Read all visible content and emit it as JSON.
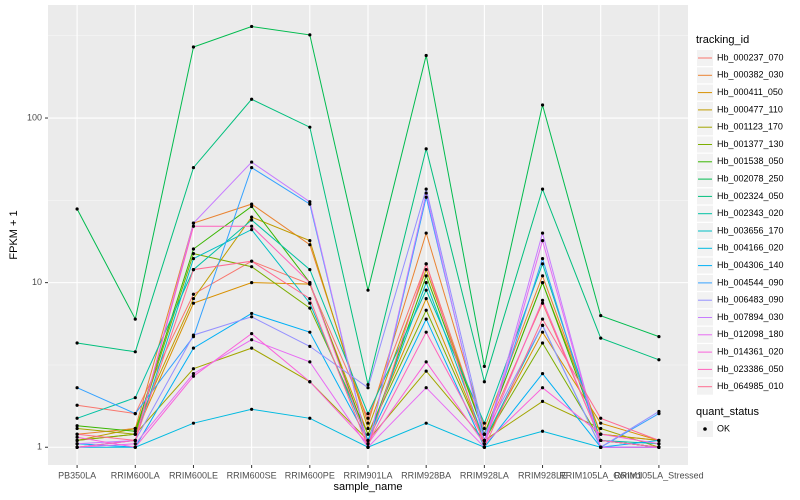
{
  "chart_data": {
    "type": "line",
    "log_y": true,
    "grid": true,
    "x_label": "sample_name",
    "y_label": "FPKM + 1",
    "legend_title": "tracking_id",
    "categories": [
      "PB350LA",
      "RRIM600LA",
      "RRIM600LE",
      "RRIM600SE",
      "RRIM600PE",
      "RRIM901LA",
      "RRIM928BA",
      "RRIM928LA",
      "RRIM928LE",
      "RRIM105LA_Control",
      "RRIM105LA_Stressed"
    ],
    "ylim": [
      0.78,
      486
    ],
    "yticks": [
      1,
      10,
      100
    ],
    "point_color": "#000000",
    "point_legend": {
      "title": "quant_status",
      "labels": [
        "OK"
      ]
    },
    "series": [
      {
        "name": "Hb_000237_070",
        "color": "#F8766D",
        "values": [
          1.8,
          1.6,
          8.5,
          13.5,
          9.8,
          1.5,
          13,
          1.2,
          7.5,
          1.1,
          1.0
        ]
      },
      {
        "name": "Hb_000382_030",
        "color": "#EA8331",
        "values": [
          1.2,
          1.3,
          23,
          30,
          17,
          1.4,
          20,
          1.3,
          11,
          1.2,
          1.1
        ]
      },
      {
        "name": "Hb_000411_050",
        "color": "#D89000",
        "values": [
          1.1,
          1.2,
          7.5,
          10,
          9.8,
          1.2,
          8,
          1.1,
          5,
          1.4,
          1.1
        ]
      },
      {
        "name": "Hb_000477_110",
        "color": "#C09B00",
        "values": [
          1.1,
          1.3,
          8,
          25,
          18,
          1.3,
          12,
          1.2,
          10,
          1.2,
          1.1
        ]
      },
      {
        "name": "Hb_001123_170",
        "color": "#A3A500",
        "values": [
          1.3,
          1.2,
          3,
          4,
          2.5,
          1.1,
          2.9,
          1.1,
          1.9,
          1.3,
          1.0
        ]
      },
      {
        "name": "Hb_001377_130",
        "color": "#7CAE00",
        "values": [
          1.1,
          1.2,
          15,
          12.5,
          7,
          1.2,
          6.8,
          1.1,
          4.3,
          1.1,
          1.0
        ]
      },
      {
        "name": "Hb_001538_050",
        "color": "#39B600",
        "values": [
          1.35,
          1.25,
          16,
          29,
          10,
          1.1,
          11,
          1.2,
          10,
          1.1,
          1.0
        ]
      },
      {
        "name": "Hb_002078_250",
        "color": "#00BB4E",
        "values": [
          28,
          6,
          270,
          360,
          320,
          9,
          240,
          3.1,
          120,
          6.3,
          4.7
        ]
      },
      {
        "name": "Hb_002324_050",
        "color": "#00BF7D",
        "values": [
          4.3,
          3.8,
          50,
          130,
          88,
          2.4,
          65,
          2.5,
          37,
          4.6,
          3.4
        ]
      },
      {
        "name": "Hb_002343_020",
        "color": "#00C1A3",
        "values": [
          1.5,
          2,
          12,
          24,
          12,
          1.6,
          9,
          1.4,
          13,
          1.1,
          1.05
        ]
      },
      {
        "name": "Hb_003656_170",
        "color": "#00BFC4",
        "values": [
          1.0,
          1.1,
          14,
          21,
          7.5,
          1.1,
          10,
          1.1,
          5.5,
          1.0,
          1.0
        ]
      },
      {
        "name": "Hb_004166_020",
        "color": "#00BAE0",
        "values": [
          1.0,
          1.0,
          1.4,
          1.7,
          1.5,
          1.0,
          1.4,
          1.0,
          1.25,
          1.0,
          1.0
        ]
      },
      {
        "name": "Hb_004306_140",
        "color": "#00B0F6",
        "values": [
          1.05,
          1.0,
          4,
          6.5,
          5,
          1.1,
          6,
          1.0,
          2.8,
          1.0,
          1.1
        ]
      },
      {
        "name": "Hb_004544_090",
        "color": "#35A2FF",
        "values": [
          2.3,
          1.6,
          4.7,
          50,
          30,
          1.0,
          33,
          1.1,
          14,
          1.0,
          1.6
        ]
      },
      {
        "name": "Hb_006483_090",
        "color": "#9590FF",
        "values": [
          1.0,
          1.1,
          4.8,
          6.2,
          4.1,
          2.3,
          37,
          1.2,
          5.5,
          1.0,
          1.65
        ]
      },
      {
        "name": "Hb_007894_030",
        "color": "#C77CFF",
        "values": [
          1.05,
          1.1,
          23,
          54,
          31,
          1.0,
          35,
          1.05,
          20,
          1.0,
          1.0
        ]
      },
      {
        "name": "Hb_012098_180",
        "color": "#E76BF3",
        "values": [
          1.0,
          1.05,
          2.8,
          4.5,
          3.3,
          1.0,
          2.3,
          1.0,
          18,
          1.0,
          1.0
        ]
      },
      {
        "name": "Hb_014361_020",
        "color": "#FA62DB",
        "values": [
          1.15,
          1.0,
          2.7,
          4.9,
          2.5,
          1.05,
          3.3,
          1.05,
          2.3,
          1.2,
          1.05
        ]
      },
      {
        "name": "Hb_023386_050",
        "color": "#FF62BC",
        "values": [
          1.0,
          1.1,
          22,
          22,
          10,
          1.05,
          5,
          1.1,
          7.8,
          1.1,
          1.0
        ]
      },
      {
        "name": "Hb_064985_010",
        "color": "#FF6C91",
        "values": [
          1.2,
          1.1,
          12,
          13.5,
          8,
          1.0,
          13,
          1.0,
          6,
          1.5,
          1.1
        ]
      }
    ]
  }
}
